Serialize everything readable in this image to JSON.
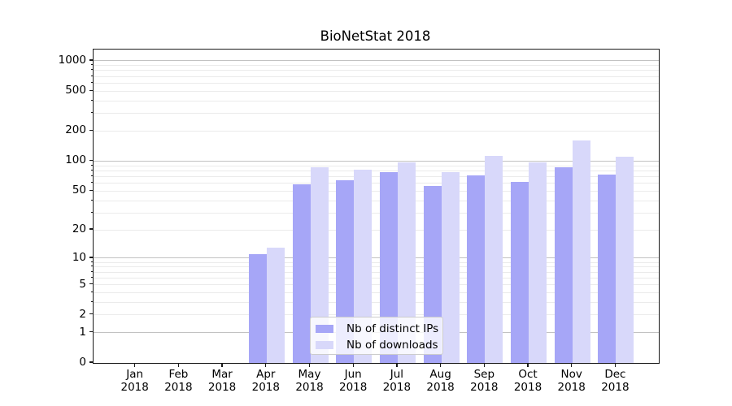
{
  "chart_data": {
    "type": "bar",
    "title": "BioNetStat 2018",
    "x_categories": [
      "Jan 2018",
      "Feb 2018",
      "Mar 2018",
      "Apr 2018",
      "May 2018",
      "Jun 2018",
      "Jul 2018",
      "Aug 2018",
      "Sep 2018",
      "Oct 2018",
      "Nov 2018",
      "Dec 2018"
    ],
    "x_tick_months": [
      "Jan",
      "Feb",
      "Mar",
      "Apr",
      "May",
      "Jun",
      "Jul",
      "Aug",
      "Sep",
      "Oct",
      "Nov",
      "Dec"
    ],
    "x_tick_year": "2018",
    "series": [
      {
        "name": "Nb of distinct IPs",
        "color": "#a6a6f7",
        "values": [
          0,
          0,
          0,
          11,
          59,
          64,
          78,
          56,
          72,
          62,
          87,
          73
        ]
      },
      {
        "name": "Nb of downloads",
        "color": "#d8d8fa",
        "values": [
          0,
          0,
          0,
          13,
          87,
          82,
          98,
          78,
          113,
          97,
          160,
          111
        ]
      }
    ],
    "y_axis": {
      "scale": "log10(1+v)",
      "tick_labels": [
        "0",
        "1",
        "2",
        "5",
        "10",
        "20",
        "50",
        "100",
        "200",
        "500",
        "1000"
      ],
      "range": [
        0,
        1300
      ],
      "grid": true
    },
    "legend": {
      "position": "lower-center",
      "entries": [
        "Nb of distinct IPs",
        "Nb of downloads"
      ]
    },
    "style": {
      "major_grid_color": "#c2c2c2",
      "minor_grid_color": "#ebebeb",
      "spine_color": "#1a1a1a"
    }
  }
}
